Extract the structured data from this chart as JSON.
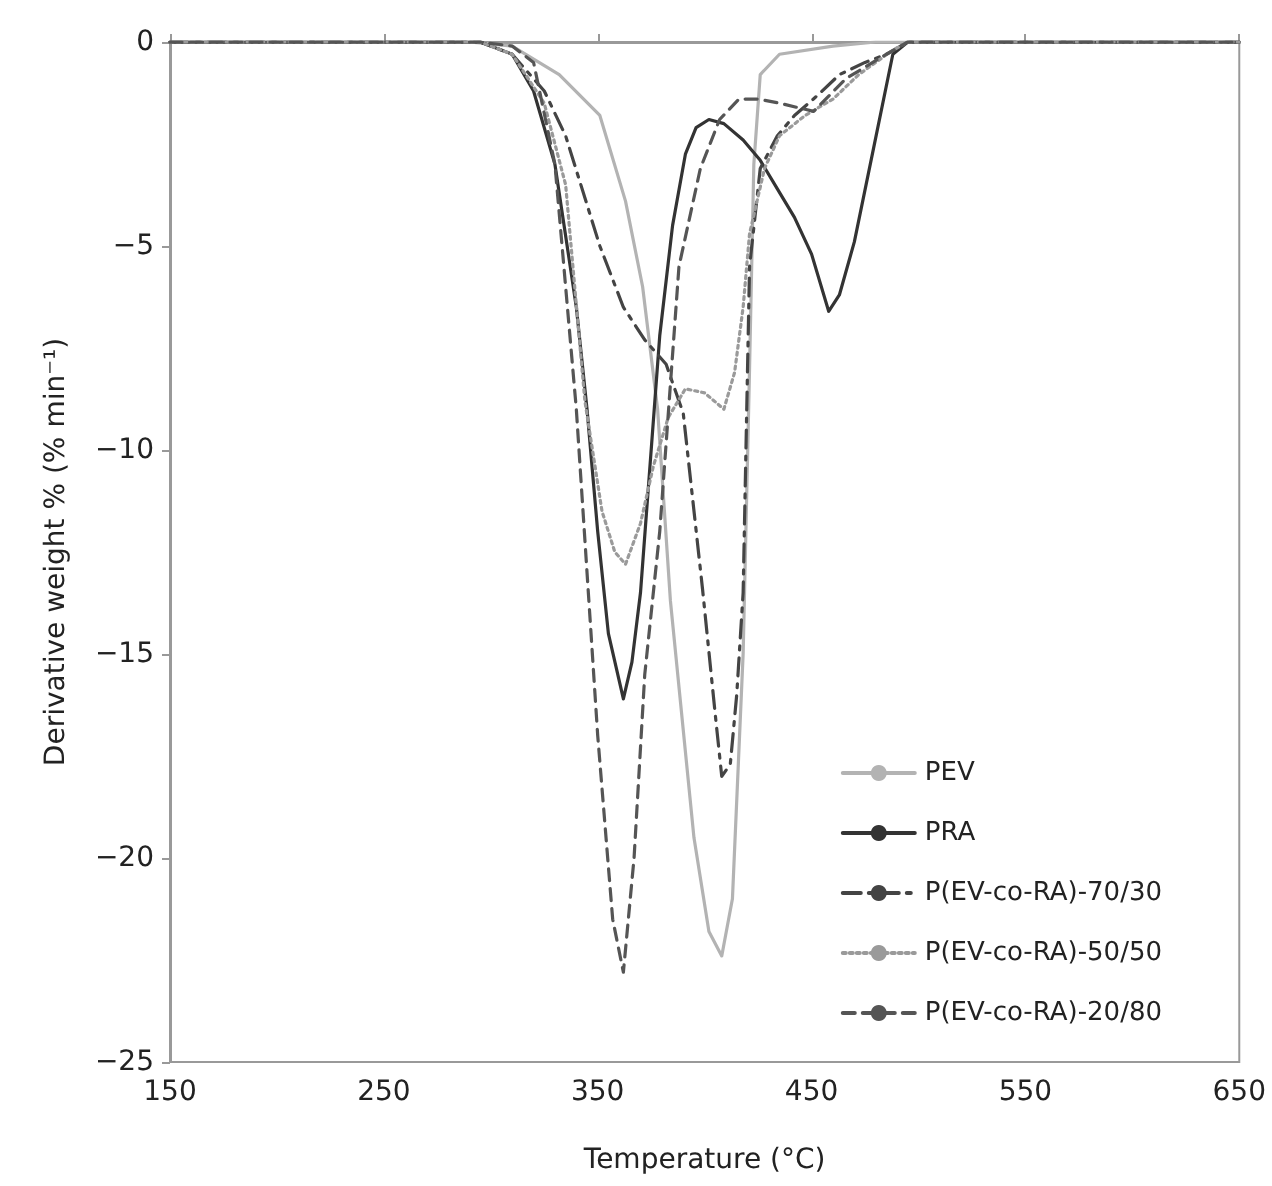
{
  "chart_data": {
    "type": "line",
    "xlabel": "Temperature (°C)",
    "ylabel": "Derivative weight % (% min⁻¹)",
    "xlim": [
      150,
      650
    ],
    "xticks": [
      150,
      250,
      350,
      450,
      550,
      650
    ],
    "ylim": [
      -25,
      0
    ],
    "yticks": [
      -25,
      -20,
      -15,
      -10,
      -5,
      0
    ],
    "grid": false,
    "legend": "bottom right",
    "marker": "none",
    "series": [
      {
        "name": "PEV",
        "color": "#b3b3b3",
        "line_style": "solid",
        "x": [
          150,
          290,
          310,
          332,
          351,
          363,
          371,
          378,
          384,
          395,
          402,
          408,
          413,
          418,
          421,
          423,
          426,
          435,
          460,
          480,
          650
        ],
        "values": [
          0,
          0,
          -0.1,
          -0.8,
          -1.8,
          -3.9,
          -6,
          -9,
          -13.7,
          -19.5,
          -21.8,
          -22.4,
          -21,
          -15,
          -8,
          -3,
          -0.8,
          -0.3,
          -0.1,
          0,
          0
        ]
      },
      {
        "name": "PRA",
        "color": "#333333",
        "line_style": "solid",
        "x": [
          150,
          295,
          310,
          320,
          330,
          340,
          345,
          350,
          355,
          362,
          366,
          370,
          379,
          385,
          391,
          396,
          402,
          409,
          418,
          426,
          434,
          442,
          450,
          458,
          463,
          470,
          479,
          488,
          495,
          650
        ],
        "values": [
          0,
          0,
          -0.3,
          -1.2,
          -3,
          -6.5,
          -9,
          -12,
          -14.5,
          -16.1,
          -15.2,
          -13.5,
          -7.2,
          -4.5,
          -2.75,
          -2.1,
          -1.9,
          -2,
          -2.4,
          -2.9,
          -3.6,
          -4.3,
          -5.2,
          -6.6,
          -6.2,
          -4.9,
          -2.6,
          -0.3,
          0,
          0
        ]
      },
      {
        "name": "P(EV-co-RA)-70/30",
        "color": "#444444",
        "line_style": "dashdot",
        "x": [
          150,
          295,
          310,
          325,
          335,
          351,
          362,
          372,
          382,
          390,
          399,
          405,
          408,
          412,
          415,
          418,
          421,
          426,
          434,
          442,
          453,
          463,
          475,
          485,
          495,
          650
        ],
        "values": [
          0,
          0,
          -0.3,
          -1.2,
          -2.3,
          -5,
          -6.5,
          -7.3,
          -7.9,
          -9.1,
          -13.4,
          -16.5,
          -18,
          -17.7,
          -16,
          -13.5,
          -5.5,
          -3.1,
          -2.3,
          -1.8,
          -1.3,
          -0.8,
          -0.5,
          -0.3,
          0,
          0
        ]
      },
      {
        "name": "P(EV-co-RA)-50/50",
        "color": "#9a9a9a",
        "line_style": "dotted",
        "x": [
          150,
          295,
          310,
          325,
          335,
          344,
          352,
          358,
          363,
          370,
          376,
          383,
          391,
          400,
          409,
          414,
          418,
          421,
          428,
          435,
          447,
          460,
          472,
          488,
          495,
          650
        ],
        "values": [
          0,
          0,
          -0.3,
          -1.5,
          -3.5,
          -8.8,
          -11.5,
          -12.5,
          -12.8,
          -11.8,
          -10.4,
          -9.2,
          -8.5,
          -8.6,
          -9,
          -8.1,
          -6.5,
          -4.7,
          -3.1,
          -2.3,
          -1.8,
          -1.4,
          -0.8,
          -0.2,
          0,
          0
        ]
      },
      {
        "name": "P(EV-co-RA)-20/80",
        "color": "#555555",
        "line_style": "dashed",
        "x": [
          150,
          295,
          310,
          320,
          330,
          340,
          350,
          357,
          362,
          367,
          372,
          379,
          388,
          398,
          407,
          416,
          425,
          435,
          443,
          451,
          466,
          485,
          495,
          650
        ],
        "values": [
          0,
          0,
          -0.1,
          -0.5,
          -3,
          -9,
          -17,
          -21.5,
          -22.8,
          -20,
          -15.5,
          -12,
          -5.5,
          -3.1,
          -1.9,
          -1.4,
          -1.4,
          -1.5,
          -1.6,
          -1.7,
          -0.9,
          -0.3,
          0,
          0
        ]
      }
    ]
  }
}
